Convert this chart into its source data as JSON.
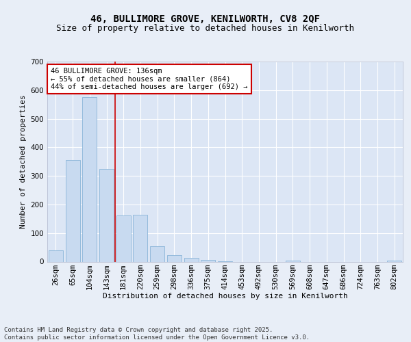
{
  "title_line1": "46, BULLIMORE GROVE, KENILWORTH, CV8 2QF",
  "title_line2": "Size of property relative to detached houses in Kenilworth",
  "xlabel": "Distribution of detached houses by size in Kenilworth",
  "ylabel": "Number of detached properties",
  "categories": [
    "26sqm",
    "65sqm",
    "104sqm",
    "143sqm",
    "181sqm",
    "220sqm",
    "259sqm",
    "298sqm",
    "336sqm",
    "375sqm",
    "414sqm",
    "453sqm",
    "492sqm",
    "530sqm",
    "569sqm",
    "608sqm",
    "647sqm",
    "686sqm",
    "724sqm",
    "763sqm",
    "802sqm"
  ],
  "values": [
    40,
    355,
    575,
    325,
    162,
    165,
    55,
    22,
    12,
    5,
    2,
    0,
    0,
    0,
    3,
    0,
    0,
    0,
    0,
    0,
    3
  ],
  "bar_color": "#c8daf0",
  "bar_edge_color": "#8ab4d8",
  "vline_x": 3.5,
  "vline_color": "#cc0000",
  "annotation_text": "46 BULLIMORE GROVE: 136sqm\n← 55% of detached houses are smaller (864)\n44% of semi-detached houses are larger (692) →",
  "annotation_box_color": "#ffffff",
  "annotation_box_edge": "#cc0000",
  "ylim": [
    0,
    700
  ],
  "yticks": [
    0,
    100,
    200,
    300,
    400,
    500,
    600,
    700
  ],
  "bg_color": "#e8eef7",
  "plot_bg_color": "#dce6f5",
  "footer": "Contains HM Land Registry data © Crown copyright and database right 2025.\nContains public sector information licensed under the Open Government Licence v3.0.",
  "title_fontsize": 10,
  "subtitle_fontsize": 9,
  "axis_label_fontsize": 8,
  "tick_fontsize": 7.5,
  "footer_fontsize": 6.5,
  "annotation_fontsize": 7.5
}
